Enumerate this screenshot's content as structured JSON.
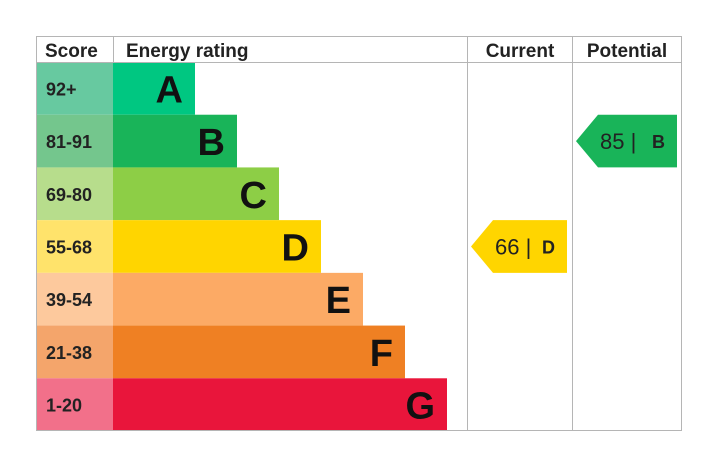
{
  "headers": {
    "score": "Score",
    "energy_rating": "Energy rating",
    "current": "Current",
    "potential": "Potential"
  },
  "chart_data": {
    "type": "bar",
    "bands": [
      {
        "letter": "A",
        "score_range": "92+",
        "bar_color": "#00c781",
        "score_color": "#67c9a0"
      },
      {
        "letter": "B",
        "score_range": "81-91",
        "bar_color": "#19b459",
        "score_color": "#74c68d"
      },
      {
        "letter": "C",
        "score_range": "69-80",
        "bar_color": "#8dce46",
        "score_color": "#b7dd8c"
      },
      {
        "letter": "D",
        "score_range": "55-68",
        "bar_color": "#ffd500",
        "score_color": "#ffe36b"
      },
      {
        "letter": "E",
        "score_range": "39-54",
        "bar_color": "#fcaa65",
        "score_color": "#fdc99d"
      },
      {
        "letter": "F",
        "score_range": "21-38",
        "bar_color": "#ef8023",
        "score_color": "#f4a56b"
      },
      {
        "letter": "G",
        "score_range": "1-20",
        "bar_color": "#e9153b",
        "score_color": "#f2708a"
      }
    ],
    "current": {
      "value": 66,
      "value_label": "66 |",
      "band": "D",
      "color": "#ffd500"
    },
    "potential": {
      "value": 85,
      "value_label": "85 |",
      "band": "B",
      "color": "#19b459"
    }
  }
}
